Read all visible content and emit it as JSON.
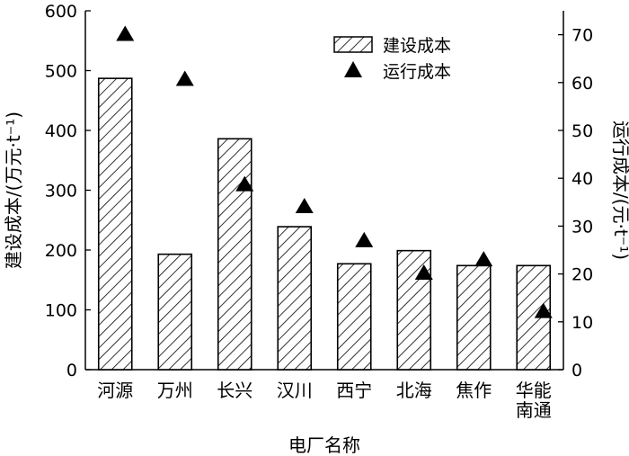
{
  "chart_data": {
    "type": "bar",
    "xlabel": "电厂名称",
    "ylabel": "建设成本/(万元·t⁻¹)",
    "y2label": "运行成本/(元·t⁻¹)",
    "categories": [
      {
        "lines": [
          "河源"
        ]
      },
      {
        "lines": [
          "万州"
        ]
      },
      {
        "lines": [
          "长兴"
        ]
      },
      {
        "lines": [
          "汉川"
        ]
      },
      {
        "lines": [
          "西宁"
        ]
      },
      {
        "lines": [
          "北海"
        ]
      },
      {
        "lines": [
          "焦作"
        ]
      },
      {
        "lines": [
          "华能",
          "南通"
        ]
      }
    ],
    "ylim": [
      0,
      600
    ],
    "y2lim": [
      0,
      75
    ],
    "yticks": [
      0,
      100,
      200,
      300,
      400,
      500,
      600
    ],
    "y2ticks": [
      0,
      10,
      20,
      30,
      40,
      50,
      60,
      70
    ],
    "series": [
      {
        "name": "建设成本",
        "kind": "bar",
        "axis": "left",
        "pattern": "diagonal-hatch",
        "values": [
          487,
          193,
          386,
          239,
          177,
          199,
          174,
          174
        ]
      },
      {
        "name": "运行成本",
        "kind": "marker",
        "marker": "triangle",
        "axis": "right",
        "values": [
          70.2,
          60.8,
          38.8,
          34.2,
          27.1,
          20.3,
          23.1,
          12.3
        ]
      }
    ],
    "legend": {
      "position": "top-right"
    },
    "grid": false
  }
}
